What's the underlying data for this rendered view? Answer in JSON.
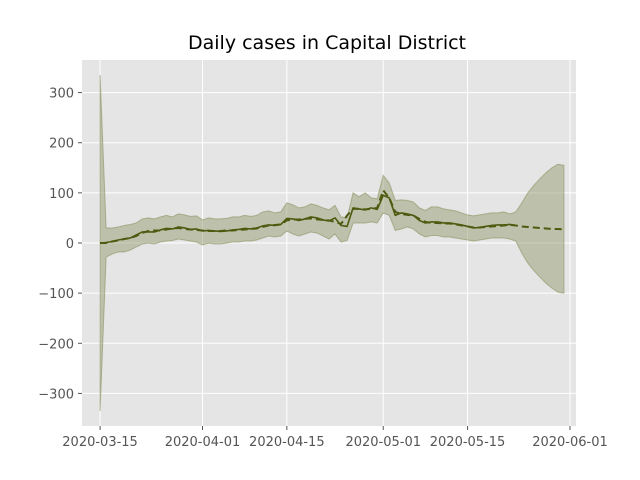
{
  "chart_data": {
    "type": "line",
    "title": "Daily cases in Capital District",
    "xlabel": "",
    "ylabel": "",
    "x_axis": "date",
    "xlim": [
      "2020-03-12",
      "2020-06-02"
    ],
    "ylim": [
      -365,
      365
    ],
    "x_ticks": [
      "2020-03-15",
      "2020-04-01",
      "2020-04-15",
      "2020-05-01",
      "2020-05-15",
      "2020-06-01"
    ],
    "y_ticks": [
      -300,
      -200,
      -100,
      0,
      100,
      200,
      300
    ],
    "y_tick_labels": [
      "−300",
      "−200",
      "−100",
      "0",
      "100",
      "200",
      "300"
    ],
    "grid": true,
    "legend": "none",
    "colors": {
      "background": "#e5e5e5",
      "grid": "#ffffff",
      "line": "#4e5a10",
      "band": "#8b9261",
      "band_opacity": 0.45,
      "tick_text": "#555555"
    },
    "series": [
      {
        "style": "solid",
        "x": [
          "2020-03-15",
          "2020-03-16",
          "2020-03-17",
          "2020-03-18",
          "2020-03-19",
          "2020-03-20",
          "2020-03-21",
          "2020-03-22",
          "2020-03-23",
          "2020-03-24",
          "2020-03-25",
          "2020-03-26",
          "2020-03-27",
          "2020-03-28",
          "2020-03-29",
          "2020-03-30",
          "2020-03-31",
          "2020-04-01",
          "2020-04-02",
          "2020-04-03",
          "2020-04-04",
          "2020-04-05",
          "2020-04-06",
          "2020-04-07",
          "2020-04-08",
          "2020-04-09",
          "2020-04-10",
          "2020-04-11",
          "2020-04-12",
          "2020-04-13",
          "2020-04-14",
          "2020-04-15",
          "2020-04-16",
          "2020-04-17",
          "2020-04-18",
          "2020-04-19",
          "2020-04-20",
          "2020-04-21",
          "2020-04-22",
          "2020-04-23",
          "2020-04-24",
          "2020-04-25",
          "2020-04-26",
          "2020-04-27",
          "2020-04-28",
          "2020-04-29",
          "2020-04-30",
          "2020-05-01",
          "2020-05-02",
          "2020-05-03",
          "2020-05-04",
          "2020-05-05",
          "2020-05-06",
          "2020-05-07",
          "2020-05-08",
          "2020-05-09",
          "2020-05-10",
          "2020-05-11",
          "2020-05-12",
          "2020-05-13",
          "2020-05-14",
          "2020-05-15",
          "2020-05-16",
          "2020-05-17",
          "2020-05-18",
          "2020-05-19",
          "2020-05-20",
          "2020-05-21",
          "2020-05-22",
          "2020-05-23"
        ],
        "values": [
          0,
          1,
          3,
          6,
          8,
          10,
          16,
          22,
          22,
          22,
          26,
          29,
          28,
          32,
          30,
          27,
          28,
          24,
          25,
          24,
          23,
          24,
          26,
          27,
          29,
          28,
          30,
          34,
          36,
          35,
          37,
          49,
          48,
          45,
          48,
          52,
          50,
          46,
          44,
          50,
          35,
          33,
          70,
          68,
          66,
          70,
          67,
          95,
          90,
          55,
          60,
          58,
          55,
          45,
          40,
          42,
          42,
          40,
          40,
          38,
          36,
          33,
          30,
          31,
          33,
          35,
          36,
          36,
          37,
          35
        ]
      },
      {
        "style": "dashed",
        "x": [
          "2020-03-15",
          "2020-03-16",
          "2020-03-17",
          "2020-03-18",
          "2020-03-19",
          "2020-03-20",
          "2020-03-21",
          "2020-03-22",
          "2020-03-23",
          "2020-03-24",
          "2020-03-25",
          "2020-03-26",
          "2020-03-27",
          "2020-03-28",
          "2020-03-29",
          "2020-03-30",
          "2020-03-31",
          "2020-04-01",
          "2020-04-02",
          "2020-04-03",
          "2020-04-04",
          "2020-04-05",
          "2020-04-06",
          "2020-04-07",
          "2020-04-08",
          "2020-04-09",
          "2020-04-10",
          "2020-04-11",
          "2020-04-12",
          "2020-04-13",
          "2020-04-14",
          "2020-04-15",
          "2020-04-16",
          "2020-04-17",
          "2020-04-18",
          "2020-04-19",
          "2020-04-20",
          "2020-04-21",
          "2020-04-22",
          "2020-04-23",
          "2020-04-24",
          "2020-04-25",
          "2020-04-26",
          "2020-04-27",
          "2020-04-28",
          "2020-04-29",
          "2020-04-30",
          "2020-05-01",
          "2020-05-02",
          "2020-05-03",
          "2020-05-04",
          "2020-05-05",
          "2020-05-06",
          "2020-05-07",
          "2020-05-08",
          "2020-05-09",
          "2020-05-10",
          "2020-05-11",
          "2020-05-12",
          "2020-05-13",
          "2020-05-14",
          "2020-05-15",
          "2020-05-16",
          "2020-05-17",
          "2020-05-18",
          "2020-05-19",
          "2020-05-20",
          "2020-05-21",
          "2020-05-22",
          "2020-05-23",
          "2020-05-24",
          "2020-05-25",
          "2020-05-26",
          "2020-05-27",
          "2020-05-28",
          "2020-05-29",
          "2020-05-30",
          "2020-05-31"
        ],
        "values": [
          0,
          0,
          3,
          5,
          8,
          10,
          14,
          20,
          24,
          25,
          25,
          27,
          29,
          30,
          28,
          27,
          26,
          25,
          24,
          24,
          24,
          25,
          25,
          26,
          27,
          28,
          29,
          32,
          35,
          36,
          37,
          45,
          47,
          47,
          48,
          49,
          47,
          46,
          45,
          42,
          38,
          55,
          68,
          68,
          67,
          68,
          70,
          105,
          90,
          62,
          58,
          56,
          55,
          48,
          42,
          40,
          40,
          39,
          39,
          37,
          35,
          33,
          31,
          31,
          32,
          33,
          34,
          35,
          36,
          35,
          33,
          32,
          31,
          30,
          29,
          28,
          28,
          27
        ]
      }
    ],
    "band": {
      "x": [
        "2020-03-15",
        "2020-03-16",
        "2020-03-17",
        "2020-03-18",
        "2020-03-19",
        "2020-03-20",
        "2020-03-21",
        "2020-03-22",
        "2020-03-23",
        "2020-03-24",
        "2020-03-25",
        "2020-03-26",
        "2020-03-27",
        "2020-03-28",
        "2020-03-29",
        "2020-03-30",
        "2020-03-31",
        "2020-04-01",
        "2020-04-02",
        "2020-04-03",
        "2020-04-04",
        "2020-04-05",
        "2020-04-06",
        "2020-04-07",
        "2020-04-08",
        "2020-04-09",
        "2020-04-10",
        "2020-04-11",
        "2020-04-12",
        "2020-04-13",
        "2020-04-14",
        "2020-04-15",
        "2020-04-16",
        "2020-04-17",
        "2020-04-18",
        "2020-04-19",
        "2020-04-20",
        "2020-04-21",
        "2020-04-22",
        "2020-04-23",
        "2020-04-24",
        "2020-04-25",
        "2020-04-26",
        "2020-04-27",
        "2020-04-28",
        "2020-04-29",
        "2020-04-30",
        "2020-05-01",
        "2020-05-02",
        "2020-05-03",
        "2020-05-04",
        "2020-05-05",
        "2020-05-06",
        "2020-05-07",
        "2020-05-08",
        "2020-05-09",
        "2020-05-10",
        "2020-05-11",
        "2020-05-12",
        "2020-05-13",
        "2020-05-14",
        "2020-05-15",
        "2020-05-16",
        "2020-05-17",
        "2020-05-18",
        "2020-05-19",
        "2020-05-20",
        "2020-05-21",
        "2020-05-22",
        "2020-05-23",
        "2020-05-24",
        "2020-05-25",
        "2020-05-26",
        "2020-05-27",
        "2020-05-28",
        "2020-05-29",
        "2020-05-30",
        "2020-05-31"
      ],
      "upper": [
        335,
        30,
        30,
        32,
        35,
        37,
        40,
        48,
        50,
        48,
        52,
        55,
        52,
        58,
        56,
        53,
        54,
        46,
        50,
        48,
        48,
        49,
        52,
        52,
        55,
        53,
        55,
        62,
        64,
        60,
        62,
        80,
        76,
        70,
        72,
        78,
        75,
        70,
        66,
        75,
        52,
        50,
        100,
        92,
        100,
        90,
        88,
        135,
        120,
        85,
        86,
        85,
        82,
        70,
        65,
        72,
        72,
        68,
        66,
        64,
        60,
        56,
        54,
        56,
        58,
        60,
        60,
        62,
        58,
        62,
        80,
        100,
        115,
        128,
        140,
        150,
        157,
        155
      ],
      "lower": [
        -335,
        -28,
        -22,
        -18,
        -18,
        -14,
        -8,
        -2,
        0,
        -2,
        2,
        4,
        5,
        8,
        6,
        4,
        2,
        -4,
        0,
        -2,
        -2,
        0,
        2,
        2,
        4,
        4,
        6,
        10,
        14,
        12,
        14,
        24,
        18,
        14,
        18,
        22,
        20,
        14,
        8,
        18,
        2,
        5,
        40,
        40,
        40,
        42,
        40,
        60,
        55,
        25,
        28,
        32,
        28,
        18,
        12,
        15,
        15,
        12,
        12,
        10,
        8,
        6,
        4,
        6,
        8,
        10,
        10,
        10,
        8,
        4,
        -20,
        -40,
        -55,
        -68,
        -80,
        -90,
        -98,
        -100
      ]
    }
  }
}
